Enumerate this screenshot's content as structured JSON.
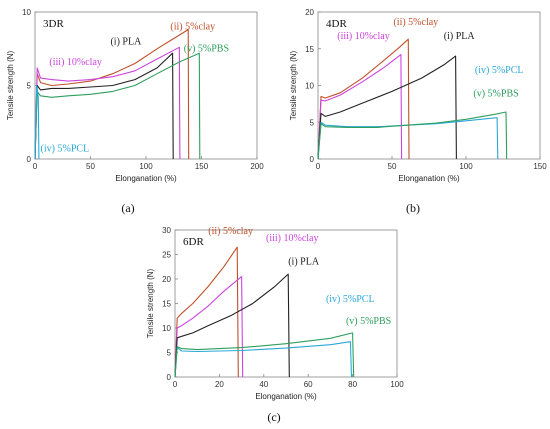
{
  "colors": {
    "PLA": "#222222",
    "clay5": "#c0502a",
    "clay10": "#cc44dd",
    "PCL": "#2aa8d8",
    "PBS": "#2e9e5c"
  },
  "chart_data": [
    {
      "type": "line",
      "panel_label": "(a)",
      "title": "3DR",
      "xlabel": "Elonganation (%)",
      "ylabel": "Tensile strength (N)",
      "xlim": [
        0,
        200
      ],
      "ylim": [
        0,
        10
      ],
      "xticks": [
        0,
        50,
        100,
        150,
        200
      ],
      "yticks": [
        0,
        5,
        10
      ],
      "series": [
        {
          "key": "clay5",
          "label": "(ii) 5%clay",
          "x": [
            0,
            2,
            5,
            15,
            30,
            50,
            70,
            90,
            110,
            125,
            138,
            138.5
          ],
          "y": [
            0,
            5.8,
            5.2,
            5.0,
            5.1,
            5.3,
            5.8,
            6.5,
            7.5,
            8.2,
            8.8,
            0
          ]
        },
        {
          "key": "clay10",
          "label": "(iii) 10%clay",
          "x": [
            0,
            2,
            5,
            15,
            30,
            50,
            70,
            90,
            110,
            130,
            130.5
          ],
          "y": [
            0,
            6.2,
            5.5,
            5.4,
            5.3,
            5.4,
            5.6,
            6.0,
            6.8,
            7.6,
            0
          ]
        },
        {
          "key": "PLA",
          "label": "(i) PLA",
          "x": [
            0,
            2,
            5,
            15,
            30,
            50,
            70,
            90,
            110,
            124,
            124.5
          ],
          "y": [
            0,
            5.0,
            4.7,
            4.8,
            4.8,
            4.9,
            5.0,
            5.4,
            6.2,
            7.2,
            0
          ]
        },
        {
          "key": "PBS",
          "label": "(v) 5%PBS",
          "x": [
            0,
            2,
            5,
            15,
            30,
            50,
            70,
            90,
            110,
            130,
            148,
            148.5
          ],
          "y": [
            0,
            4.6,
            4.3,
            4.2,
            4.3,
            4.4,
            4.6,
            5.0,
            5.8,
            6.6,
            7.2,
            0
          ]
        },
        {
          "key": "PCL",
          "label": "(iv) 5%PCL",
          "x": [
            0,
            1.5,
            3,
            3.5
          ],
          "y": [
            0,
            5.0,
            4.2,
            0
          ]
        }
      ],
      "annotations": [
        {
          "key": "PLA",
          "text": "(i) PLA",
          "x": 68,
          "y": 7.8
        },
        {
          "key": "clay5",
          "text": "(ii) 5%clay",
          "x": 122,
          "y": 8.8
        },
        {
          "key": "clay10",
          "text": "(iii) 10%clay",
          "x": 13,
          "y": 6.4
        },
        {
          "key": "PBS",
          "text": "(v) 5%PBS",
          "x": 134,
          "y": 7.3
        },
        {
          "key": "PCL",
          "text": "(iv) 5%PCL",
          "x": 5,
          "y": 0.5
        }
      ]
    },
    {
      "type": "line",
      "panel_label": "(b)",
      "title": "4DR",
      "xlabel": "Elonganation (%)",
      "ylabel": "Tensile strength (N)",
      "xlim": [
        0,
        150
      ],
      "ylim": [
        0,
        20
      ],
      "xticks": [
        0,
        50,
        100,
        150
      ],
      "yticks": [
        0,
        5,
        10,
        15,
        20
      ],
      "series": [
        {
          "key": "clay5",
          "label": "(ii) 5%clay",
          "x": [
            0,
            2,
            5,
            15,
            30,
            45,
            55,
            61,
            61.5
          ],
          "y": [
            0,
            8.5,
            8.3,
            9.0,
            11.0,
            13.5,
            15.2,
            16.3,
            0
          ]
        },
        {
          "key": "clay10",
          "label": "(iii) 10%clay",
          "x": [
            0,
            2,
            5,
            15,
            30,
            45,
            56,
            56.5
          ],
          "y": [
            0,
            8.0,
            7.9,
            8.7,
            10.5,
            12.5,
            14.2,
            0
          ]
        },
        {
          "key": "PLA",
          "label": "(i) PLA",
          "x": [
            0,
            2,
            5,
            15,
            30,
            50,
            70,
            85,
            93,
            93.5
          ],
          "y": [
            0,
            6.2,
            5.8,
            6.4,
            7.6,
            9.2,
            11.0,
            12.8,
            14.0,
            0
          ]
        },
        {
          "key": "PCL",
          "label": "(iv) 5%PCL",
          "x": [
            0,
            2,
            5,
            20,
            40,
            60,
            80,
            100,
            120,
            121,
            121.5
          ],
          "y": [
            0,
            5.0,
            4.6,
            4.4,
            4.4,
            4.6,
            4.8,
            5.2,
            5.6,
            5.6,
            0
          ]
        },
        {
          "key": "PBS",
          "label": "(v) 5%PBS",
          "x": [
            0,
            2,
            5,
            20,
            40,
            60,
            80,
            100,
            120,
            127,
            127.5
          ],
          "y": [
            0,
            4.8,
            4.4,
            4.3,
            4.3,
            4.6,
            4.9,
            5.4,
            6.1,
            6.4,
            0
          ]
        }
      ],
      "annotations": [
        {
          "key": "clay5",
          "text": "(ii) 5%clay",
          "x": 51,
          "y": 18.2
        },
        {
          "key": "clay10",
          "text": "(iii) 10%clay",
          "x": 13,
          "y": 16.3
        },
        {
          "key": "PLA",
          "text": "(i) PLA",
          "x": 85,
          "y": 16.3
        },
        {
          "key": "PCL",
          "text": "(iv) 5%PCL",
          "x": 106,
          "y": 11.7
        },
        {
          "key": "PBS",
          "text": "(v) 5%PBS",
          "x": 105,
          "y": 8.5
        }
      ]
    },
    {
      "type": "line",
      "panel_label": "(c)",
      "title": "6DR",
      "xlabel": "Elonganation (%)",
      "ylabel": "Tensile strength (N)",
      "xlim": [
        0,
        100
      ],
      "ylim": [
        0,
        30
      ],
      "xticks": [
        0,
        20,
        40,
        60,
        80,
        100
      ],
      "yticks": [
        0,
        5,
        10,
        15,
        20,
        25,
        30
      ],
      "series": [
        {
          "key": "clay5",
          "label": "(ii) 5%clay",
          "x": [
            0,
            1,
            3,
            8,
            15,
            22,
            28,
            28.5
          ],
          "y": [
            0,
            12.0,
            13.0,
            15.0,
            18.5,
            22.5,
            26.5,
            0
          ]
        },
        {
          "key": "clay10",
          "label": "(iii) 10%clay",
          "x": [
            0,
            1,
            3,
            8,
            15,
            22,
            30,
            30.5
          ],
          "y": [
            0,
            10.0,
            10.5,
            12.0,
            14.5,
            17.5,
            20.5,
            0
          ]
        },
        {
          "key": "PLA",
          "label": "(i) PLA",
          "x": [
            0,
            1,
            3,
            8,
            15,
            25,
            35,
            45,
            51,
            51.5
          ],
          "y": [
            0,
            8.0,
            8.3,
            9.0,
            10.5,
            12.5,
            15.0,
            18.5,
            21.0,
            0
          ]
        },
        {
          "key": "PCL",
          "label": "(iv) 5%PCL",
          "x": [
            0,
            1,
            3,
            10,
            30,
            50,
            70,
            79,
            79.5
          ],
          "y": [
            0,
            6.0,
            5.3,
            5.2,
            5.4,
            5.9,
            6.6,
            7.2,
            0
          ]
        },
        {
          "key": "PBS",
          "label": "(v) 5%PBS",
          "x": [
            0,
            1,
            3,
            10,
            30,
            50,
            70,
            80,
            80.5
          ],
          "y": [
            0,
            6.2,
            5.8,
            5.6,
            6.0,
            6.8,
            7.9,
            9.0,
            0
          ]
        }
      ],
      "annotations": [
        {
          "key": "clay5",
          "text": "(ii) 5%clay",
          "x": 15,
          "y": 29.2
        },
        {
          "key": "clay10",
          "text": "(iii) 10%clay",
          "x": 41,
          "y": 27.8
        },
        {
          "key": "PLA",
          "text": "(i) PLA",
          "x": 51,
          "y": 23.0
        },
        {
          "key": "PCL",
          "text": "(iv) 5%PCL",
          "x": 68,
          "y": 15.3
        },
        {
          "key": "PBS",
          "text": "(v) 5%PBS",
          "x": 77,
          "y": 10.8
        }
      ]
    }
  ]
}
